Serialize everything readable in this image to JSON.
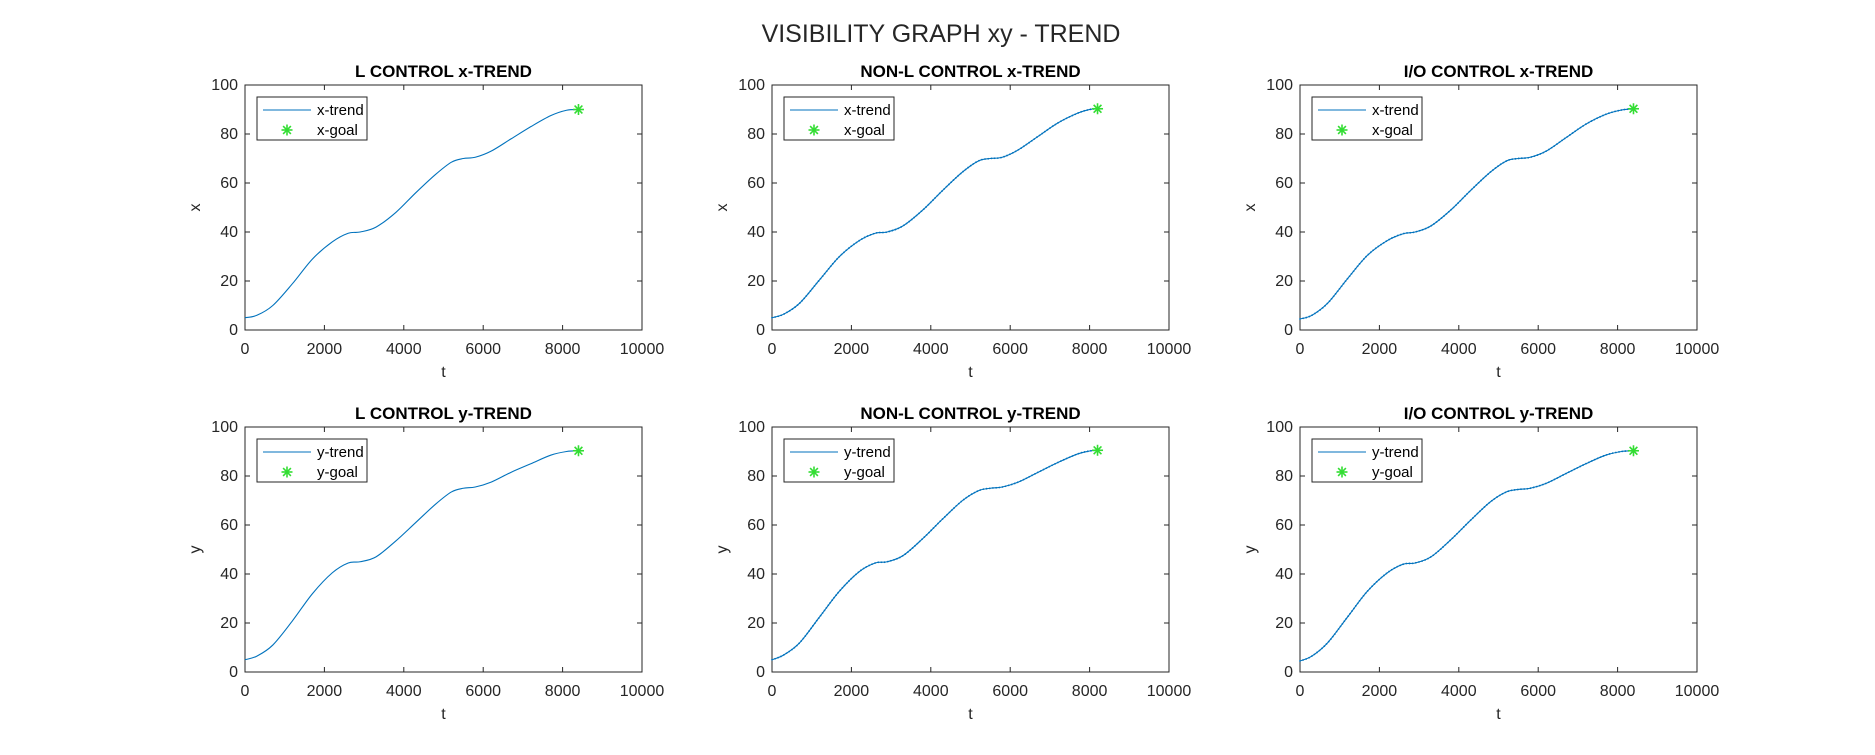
{
  "figure": {
    "title": "VISIBILITY GRAPH xy - TREND"
  },
  "colors": {
    "trend": "#0072BD",
    "goal": "#33DD33",
    "axes": "#262626"
  },
  "chart_data": [
    {
      "type": "line",
      "title": "L CONTROL x-TREND",
      "xlabel": "t",
      "ylabel": "x",
      "xlim": [
        0,
        10000
      ],
      "ylim": [
        0,
        100
      ],
      "xticks": [
        "0",
        "2000",
        "4000",
        "6000",
        "8000",
        "10000"
      ],
      "yticks": [
        "0",
        "20",
        "40",
        "60",
        "80",
        "100"
      ],
      "legend_position": "top-left",
      "marker_dots": false,
      "series": [
        {
          "name": "x-trend",
          "style": "line",
          "x": [
            0,
            300,
            700,
            1200,
            1700,
            2200,
            2600,
            2900,
            3300,
            3800,
            4300,
            4800,
            5200,
            5500,
            5800,
            6200,
            6700,
            7200,
            7700,
            8100,
            8400
          ],
          "y": [
            5,
            6,
            10,
            19,
            29,
            36,
            39.5,
            40,
            42,
            48,
            56,
            63.5,
            68.5,
            70,
            70.5,
            73,
            78,
            83,
            87.5,
            89.7,
            90
          ]
        },
        {
          "name": "x-goal",
          "style": "marker",
          "x": [
            8400
          ],
          "y": [
            90
          ]
        }
      ]
    },
    {
      "type": "line",
      "title": "NON-L CONTROL x-TREND",
      "xlabel": "t",
      "ylabel": "x",
      "xlim": [
        0,
        10000
      ],
      "ylim": [
        0,
        100
      ],
      "xticks": [
        "0",
        "2000",
        "4000",
        "6000",
        "8000",
        "10000"
      ],
      "yticks": [
        "0",
        "20",
        "40",
        "60",
        "80",
        "100"
      ],
      "legend_position": "top-left",
      "marker_dots": true,
      "series": [
        {
          "name": "x-trend",
          "style": "line",
          "x": [
            0,
            300,
            700,
            1200,
            1700,
            2200,
            2600,
            2900,
            3300,
            3800,
            4300,
            4800,
            5200,
            5500,
            5800,
            6200,
            6700,
            7200,
            7700,
            8000,
            8200
          ],
          "y": [
            5,
            6.5,
            11,
            20.5,
            30,
            36.5,
            39.5,
            40,
            42.5,
            49,
            57,
            64.5,
            69,
            70,
            70.5,
            73.5,
            79,
            84.5,
            88.5,
            90,
            90.3
          ]
        },
        {
          "name": "x-goal",
          "style": "marker",
          "x": [
            8200
          ],
          "y": [
            90.3
          ]
        }
      ]
    },
    {
      "type": "line",
      "title": "I/O CONTROL x-TREND",
      "xlabel": "t",
      "ylabel": "x",
      "xlim": [
        0,
        10000
      ],
      "ylim": [
        0,
        100
      ],
      "xticks": [
        "0",
        "2000",
        "4000",
        "6000",
        "8000",
        "10000"
      ],
      "yticks": [
        "0",
        "20",
        "40",
        "60",
        "80",
        "100"
      ],
      "legend_position": "top-left",
      "marker_dots": true,
      "series": [
        {
          "name": "x-trend",
          "style": "line",
          "x": [
            0,
            300,
            700,
            1200,
            1700,
            2200,
            2600,
            2900,
            3300,
            3800,
            4300,
            4800,
            5200,
            5500,
            5800,
            6200,
            6700,
            7200,
            7700,
            8100,
            8400
          ],
          "y": [
            4.5,
            6,
            11,
            21,
            30.5,
            36.5,
            39.3,
            40,
            42.5,
            49,
            57,
            64.5,
            69,
            70,
            70.5,
            73,
            78.5,
            84,
            88,
            89.8,
            90.3
          ]
        },
        {
          "name": "x-goal",
          "style": "marker",
          "x": [
            8400
          ],
          "y": [
            90.3
          ]
        }
      ]
    },
    {
      "type": "line",
      "title": "L CONTROL y-TREND",
      "xlabel": "t",
      "ylabel": "y",
      "xlim": [
        0,
        10000
      ],
      "ylim": [
        0,
        100
      ],
      "xticks": [
        "0",
        "2000",
        "4000",
        "6000",
        "8000",
        "10000"
      ],
      "yticks": [
        "0",
        "20",
        "40",
        "60",
        "80",
        "100"
      ],
      "legend_position": "top-left",
      "marker_dots": false,
      "series": [
        {
          "name": "y-trend",
          "style": "line",
          "x": [
            0,
            300,
            700,
            1200,
            1700,
            2200,
            2600,
            2900,
            3300,
            3800,
            4300,
            4800,
            5200,
            5500,
            5800,
            6200,
            6700,
            7200,
            7700,
            8100,
            8400
          ],
          "y": [
            5,
            6.5,
            11,
            21,
            32,
            40.5,
            44.5,
            45,
            47,
            53.5,
            61,
            68.5,
            73.5,
            75,
            75.5,
            77.5,
            81.5,
            85,
            88.5,
            90,
            90.3
          ]
        },
        {
          "name": "y-goal",
          "style": "marker",
          "x": [
            8400
          ],
          "y": [
            90.3
          ]
        }
      ]
    },
    {
      "type": "line",
      "title": "NON-L CONTROL y-TREND",
      "xlabel": "t",
      "ylabel": "y",
      "xlim": [
        0,
        10000
      ],
      "ylim": [
        0,
        100
      ],
      "xticks": [
        "0",
        "2000",
        "4000",
        "6000",
        "8000",
        "10000"
      ],
      "yticks": [
        "0",
        "20",
        "40",
        "60",
        "80",
        "100"
      ],
      "legend_position": "top-left",
      "marker_dots": true,
      "series": [
        {
          "name": "y-trend",
          "style": "line",
          "x": [
            0,
            300,
            700,
            1200,
            1700,
            2200,
            2600,
            2900,
            3300,
            3800,
            4300,
            4800,
            5200,
            5500,
            5800,
            6200,
            6700,
            7200,
            7700,
            8000,
            8200
          ],
          "y": [
            5,
            7,
            12,
            22.5,
            33,
            41,
            44.5,
            45,
            47.5,
            54.5,
            62.5,
            70,
            74,
            75,
            75.5,
            77.5,
            81.5,
            85.5,
            89,
            90.2,
            90.5
          ]
        },
        {
          "name": "y-goal",
          "style": "marker",
          "x": [
            8200
          ],
          "y": [
            90.5
          ]
        }
      ]
    },
    {
      "type": "line",
      "title": "I/O CONTROL y-TREND",
      "xlabel": "t",
      "ylabel": "y",
      "xlim": [
        0,
        10000
      ],
      "ylim": [
        0,
        100
      ],
      "xticks": [
        "0",
        "2000",
        "4000",
        "6000",
        "8000",
        "10000"
      ],
      "yticks": [
        "0",
        "20",
        "40",
        "60",
        "80",
        "100"
      ],
      "legend_position": "top-left",
      "marker_dots": true,
      "series": [
        {
          "name": "y-trend",
          "style": "line",
          "x": [
            0,
            300,
            700,
            1200,
            1700,
            2200,
            2600,
            2900,
            3300,
            3800,
            4300,
            4800,
            5200,
            5500,
            5800,
            6200,
            6700,
            7200,
            7700,
            8100,
            8400
          ],
          "y": [
            4.5,
            6.5,
            12,
            22.5,
            33,
            40.5,
            44,
            44.5,
            47,
            54,
            62,
            69.5,
            73.5,
            74.5,
            75,
            77,
            81,
            85,
            88.5,
            90,
            90.3
          ]
        },
        {
          "name": "y-goal",
          "style": "marker",
          "x": [
            8400
          ],
          "y": [
            90.3
          ]
        }
      ]
    }
  ]
}
